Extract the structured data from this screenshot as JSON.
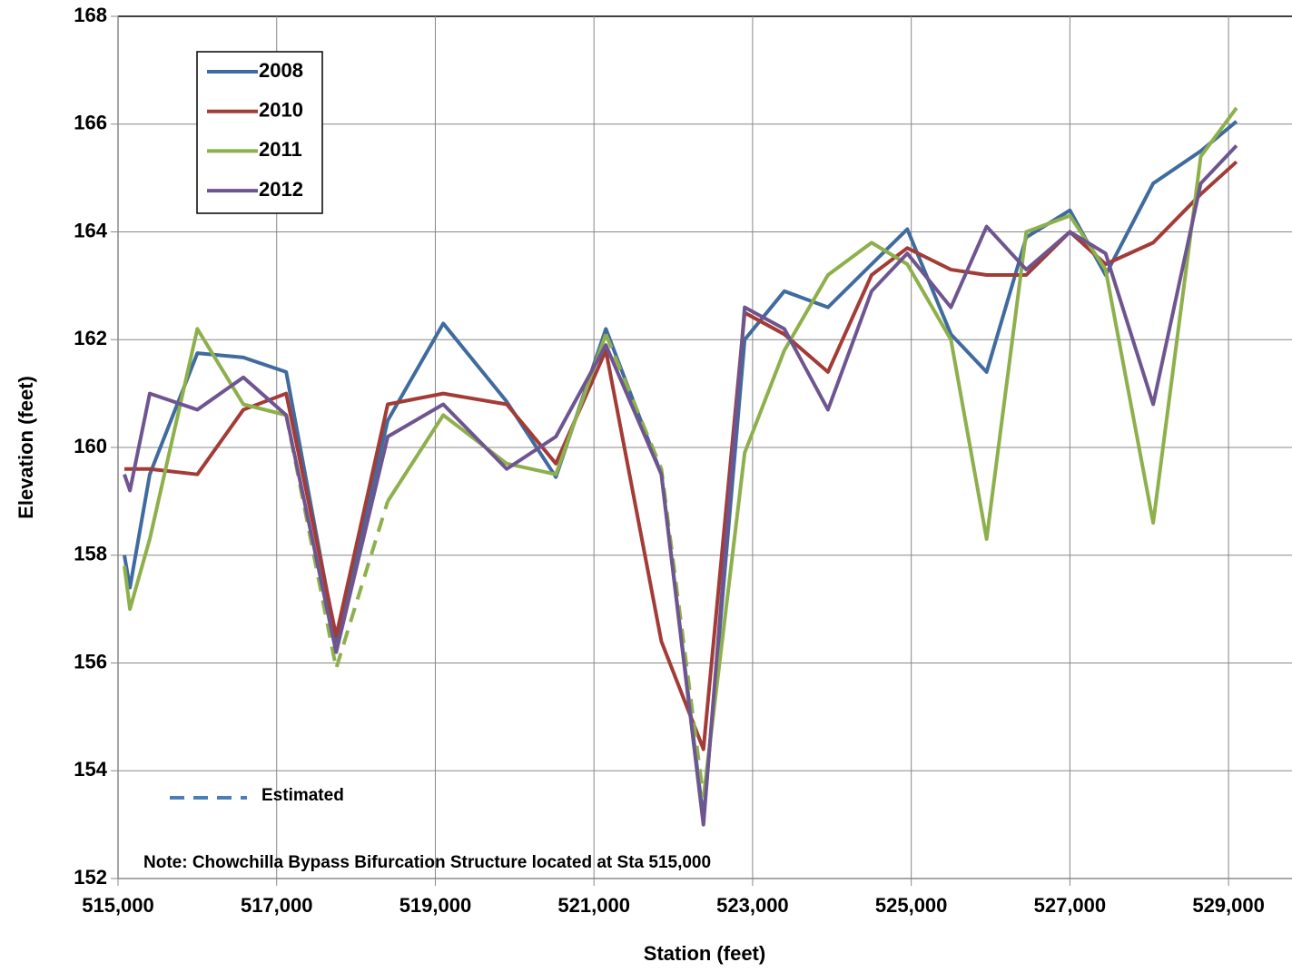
{
  "chart_data": {
    "type": "line",
    "x_label": "Station (feet)",
    "y_label": "Elevation (feet)",
    "annotations": [
      "Estimated",
      "Note:  Chowchilla Bypass Bifurcation Structure located at Sta 515,000"
    ],
    "estimated_color": "#4a7ebb",
    "x": [
      515080,
      515150,
      515400,
      516000,
      516580,
      517120,
      517750,
      518400,
      519100,
      519900,
      520520,
      521150,
      521850,
      522380,
      522900,
      523400,
      523950,
      524500,
      524950,
      525500,
      525950,
      526450,
      527000,
      527450,
      528050,
      528650,
      529100
    ],
    "series": [
      {
        "name": "2008",
        "color": "#3f6b9e",
        "values": [
          158.0,
          157.4,
          159.5,
          161.75,
          161.67,
          161.4,
          156.4,
          160.5,
          162.3,
          160.85,
          159.45,
          162.2,
          159.5,
          153.1,
          162.0,
          162.9,
          162.6,
          163.4,
          164.05,
          162.1,
          161.4,
          163.9,
          164.4,
          163.2,
          164.9,
          165.5,
          166.05
        ]
      },
      {
        "name": "2010",
        "color": "#a33b37",
        "values": [
          159.6,
          159.6,
          159.6,
          159.5,
          160.7,
          161.0,
          156.5,
          160.8,
          161.0,
          160.8,
          159.7,
          161.8,
          156.4,
          154.4,
          162.5,
          162.1,
          161.4,
          163.2,
          163.7,
          163.3,
          163.2,
          163.2,
          164.0,
          163.4,
          163.8,
          164.7,
          165.3
        ]
      },
      {
        "name": "2011",
        "color": "#8eb04c",
        "dashed_ranges": [
          [
            5,
            7
          ],
          [
            11,
            13
          ]
        ],
        "values": [
          157.8,
          157.0,
          158.3,
          162.2,
          160.8,
          160.6,
          155.9,
          159.0,
          160.6,
          159.7,
          159.5,
          162.1,
          159.6,
          153.5,
          159.9,
          161.8,
          163.2,
          163.8,
          163.4,
          162.0,
          158.3,
          164.0,
          164.3,
          163.3,
          158.6,
          165.4,
          166.3
        ]
      },
      {
        "name": "2012",
        "color": "#6e5590",
        "values": [
          159.5,
          159.2,
          161.0,
          160.7,
          161.3,
          160.6,
          156.2,
          160.2,
          160.8,
          159.6,
          160.2,
          161.9,
          159.5,
          153.0,
          162.6,
          162.2,
          160.7,
          162.9,
          163.6,
          162.6,
          164.1,
          163.3,
          164.0,
          163.6,
          160.8,
          164.9,
          165.6
        ]
      }
    ],
    "xlim": [
      515000,
      529800
    ],
    "ylim": [
      152,
      168
    ],
    "xticks": [
      {
        "value": 515000,
        "label": "515,000"
      },
      {
        "value": 517000,
        "label": "517,000"
      },
      {
        "value": 519000,
        "label": "519,000"
      },
      {
        "value": 521000,
        "label": "521,000"
      },
      {
        "value": 523000,
        "label": "523,000"
      },
      {
        "value": 525000,
        "label": "525,000"
      },
      {
        "value": 527000,
        "label": "527,000"
      },
      {
        "value": 529000,
        "label": "529,000"
      }
    ],
    "yticks": [
      152,
      154,
      156,
      158,
      160,
      162,
      164,
      166,
      168
    ],
    "grid": true,
    "legend": "upper-left"
  }
}
